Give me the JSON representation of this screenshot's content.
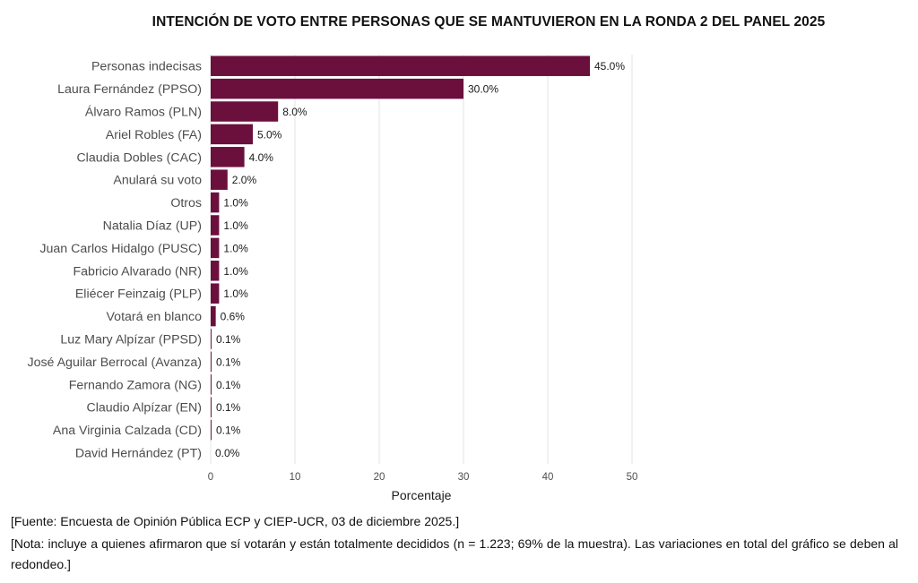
{
  "chart_data": {
    "type": "bar",
    "orientation": "horizontal",
    "title": "INTENCIÓN DE VOTO ENTRE PERSONAS QUE SE MANTUVIERON EN LA RONDA 2 DEL PANEL 2025",
    "xlabel": "Porcentaje",
    "ylabel": "",
    "xlim": [
      0,
      50
    ],
    "xticks": [
      0,
      10,
      20,
      30,
      40,
      50
    ],
    "grid": true,
    "bar_color": "#6b0f3d",
    "categories": [
      "Personas indecisas",
      "Laura Fernández (PPSO)",
      "Álvaro Ramos (PLN)",
      "Ariel Robles (FA)",
      "Claudia Dobles (CAC)",
      "Anulará su voto",
      "Otros",
      "Natalia Díaz (UP)",
      "Juan Carlos Hidalgo (PUSC)",
      "Fabricio Alvarado (NR)",
      "Eliécer Feinzaig (PLP)",
      "Votará en blanco",
      "Luz Mary Alpízar (PPSD)",
      "José Aguilar Berrocal (Avanza)",
      "Fernando Zamora (NG)",
      "Claudio Alpízar (EN)",
      "Ana Virginia Calzada (CD)",
      "David Hernández (PT)"
    ],
    "values": [
      45.0,
      30.0,
      8.0,
      5.0,
      4.0,
      2.0,
      1.0,
      1.0,
      1.0,
      1.0,
      1.0,
      0.6,
      0.1,
      0.1,
      0.1,
      0.1,
      0.1,
      0.0
    ],
    "value_labels": [
      "45.0%",
      "30.0%",
      "8.0%",
      "5.0%",
      "4.0%",
      "2.0%",
      "1.0%",
      "1.0%",
      "1.0%",
      "1.0%",
      "1.0%",
      "0.6%",
      "0.1%",
      "0.1%",
      "0.1%",
      "0.1%",
      "0.1%",
      "0.0%"
    ]
  },
  "notes": {
    "source": "[Fuente: Encuesta de Opinión Pública ECP y CIEP-UCR, 03 de diciembre 2025.]",
    "note": "[Nota: incluye a quienes afirmaron que sí votarán y están totalmente decididos (n = 1.223; 69% de la muestra). Las variaciones en total del gráfico se deben al redondeo.]"
  }
}
